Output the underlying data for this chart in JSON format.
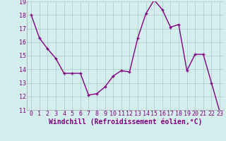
{
  "x": [
    0,
    1,
    2,
    3,
    4,
    5,
    6,
    7,
    8,
    9,
    10,
    11,
    12,
    13,
    14,
    15,
    16,
    17,
    18,
    19,
    20,
    21,
    22,
    23
  ],
  "y": [
    18.0,
    16.3,
    15.5,
    14.8,
    13.7,
    13.7,
    13.7,
    12.1,
    12.2,
    12.7,
    13.5,
    13.9,
    13.8,
    16.3,
    18.1,
    19.1,
    18.4,
    17.1,
    17.3,
    13.9,
    15.1,
    15.1,
    13.0,
    10.9
  ],
  "line_color": "#800080",
  "marker": "+",
  "marker_color": "#800080",
  "bg_color": "#d4eeee",
  "grid_color": "#b0d0d0",
  "xlabel": "Windchill (Refroidissement éolien,°C)",
  "ylim": [
    11,
    19
  ],
  "xlim_min": -0.5,
  "xlim_max": 23.5,
  "yticks": [
    11,
    12,
    13,
    14,
    15,
    16,
    17,
    18,
    19
  ],
  "xticks": [
    0,
    1,
    2,
    3,
    4,
    5,
    6,
    7,
    8,
    9,
    10,
    11,
    12,
    13,
    14,
    15,
    16,
    17,
    18,
    19,
    20,
    21,
    22,
    23
  ],
  "tick_label_fontsize": 6,
  "xlabel_fontsize": 7,
  "line_width": 1.0,
  "marker_size": 3.5,
  "label_color": "#800080"
}
